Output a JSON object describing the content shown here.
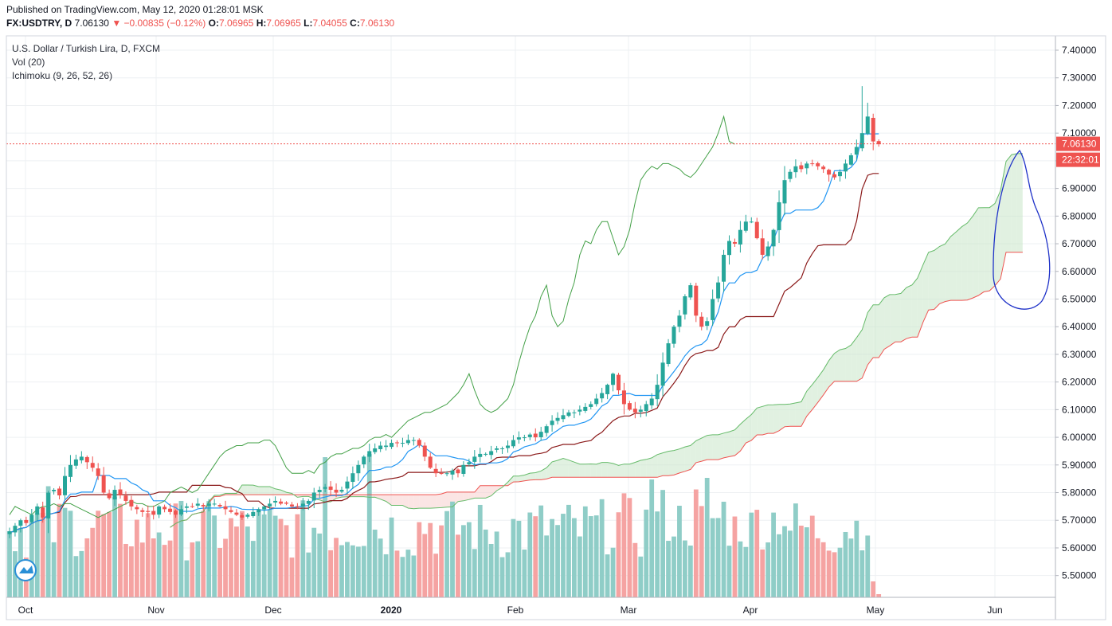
{
  "header": {
    "published": "Published on TradingView.com, May 12, 2020 01:28:01 MSK",
    "symbol": "FX:USDTRY, D",
    "last": "7.06130",
    "change": "▼ −0.00835 (−0.12%)",
    "o_label": "O:",
    "o_val": "7.06965",
    "h_label": "H:",
    "h_val": "7.06965",
    "l_label": "L:",
    "l_val": "7.04055",
    "c_label": "C:",
    "c_val": "7.06130"
  },
  "legend": {
    "title": "U.S. Dollar / Turkish Lira, D, FXCM",
    "vol": "Vol (20)",
    "ichimoku": "Ichimoku (9, 26, 52, 26)"
  },
  "price_badge": {
    "value": "7.06130",
    "countdown": "22:32:01"
  },
  "colors": {
    "up": "#26a69a",
    "down": "#ef5350",
    "vol_up": "#8fcdc7",
    "vol_down": "#f5a3a2",
    "conversion": "#2196f3",
    "base": "#8b1a1a",
    "lagging": "#43a047",
    "span_a": "#66bb6a",
    "span_b": "#ef5350",
    "cloud_bull": "#c8e6c9",
    "cloud_bear": "#f8d0cd",
    "annotation": "#1f32c8"
  },
  "chart_data": {
    "type": "candlestick",
    "symbol": "FX:USDTRY",
    "timeframe": "D",
    "y_axis_ticks": [
      "7.40000",
      "7.30000",
      "7.20000",
      "7.10000",
      "7.00000",
      "6.90000",
      "6.80000",
      "6.70000",
      "6.60000",
      "6.50000",
      "6.40000",
      "6.30000",
      "6.20000",
      "6.10000",
      "6.00000",
      "5.90000",
      "5.80000",
      "5.70000",
      "5.60000",
      "5.50000"
    ],
    "ylim": [
      5.46,
      7.47
    ],
    "x_axis_labels": [
      "Oct",
      "Nov",
      "Dec",
      "2020",
      "Feb",
      "Mar",
      "Apr",
      "May",
      "Jun"
    ],
    "last_price": 7.0613,
    "closes_daily": [
      5.66,
      5.68,
      5.7,
      5.69,
      5.72,
      5.75,
      5.71,
      5.8,
      5.81,
      5.79,
      5.86,
      5.9,
      5.92,
      5.93,
      5.91,
      5.89,
      5.86,
      5.8,
      5.78,
      5.81,
      5.79,
      5.77,
      5.75,
      5.74,
      5.73,
      5.73,
      5.72,
      5.75,
      5.74,
      5.73,
      5.72,
      5.74,
      5.75,
      5.75,
      5.76,
      5.75,
      5.76,
      5.76,
      5.75,
      5.74,
      5.73,
      5.72,
      5.71,
      5.72,
      5.73,
      5.74,
      5.75,
      5.76,
      5.77,
      5.76,
      5.76,
      5.75,
      5.75,
      5.76,
      5.77,
      5.8,
      5.81,
      5.82,
      5.81,
      5.8,
      5.81,
      5.84,
      5.87,
      5.9,
      5.93,
      5.95,
      5.96,
      5.97,
      5.97,
      5.98,
      5.98,
      5.98,
      5.99,
      5.99,
      5.97,
      5.93,
      5.89,
      5.87,
      5.87,
      5.87,
      5.88,
      5.87,
      5.9,
      5.91,
      5.93,
      5.94,
      5.94,
      5.95,
      5.96,
      5.96,
      5.97,
      5.99,
      6.0,
      6.0,
      6.01,
      6.0,
      6.02,
      6.04,
      6.06,
      6.07,
      6.08,
      6.09,
      6.09,
      6.1,
      6.11,
      6.12,
      6.14,
      6.16,
      6.19,
      6.23,
      6.17,
      6.12,
      6.1,
      6.09,
      6.1,
      6.12,
      6.14,
      6.19,
      6.27,
      6.34,
      6.4,
      6.44,
      6.51,
      6.55,
      6.44,
      6.4,
      6.42,
      6.5,
      6.56,
      6.66,
      6.71,
      6.7,
      6.75,
      6.78,
      6.78,
      6.72,
      6.66,
      6.69,
      6.75,
      6.85,
      6.93,
      6.96,
      6.98,
      6.97,
      6.99,
      6.99,
      6.98,
      6.97,
      6.95,
      6.94,
      6.96,
      6.99,
      7.02,
      7.05,
      7.1,
      7.16,
      7.07,
      7.06
    ],
    "series": [
      {
        "name": "Tenkan (conversion, 9)",
        "values": "computed from closes_daily"
      },
      {
        "name": "Kijun (base, 26)",
        "values": "computed from closes_daily"
      },
      {
        "name": "Chikou (lagging, 26)",
        "values": "computed from closes_daily"
      },
      {
        "name": "Senkou Span A",
        "values": "computed from closes_daily"
      },
      {
        "name": "Senkou Span B",
        "values": "computed from closes_daily"
      },
      {
        "name": "Vol (20)",
        "values": "volume bars"
      }
    ],
    "grid": true,
    "legend_position": "top-left"
  }
}
